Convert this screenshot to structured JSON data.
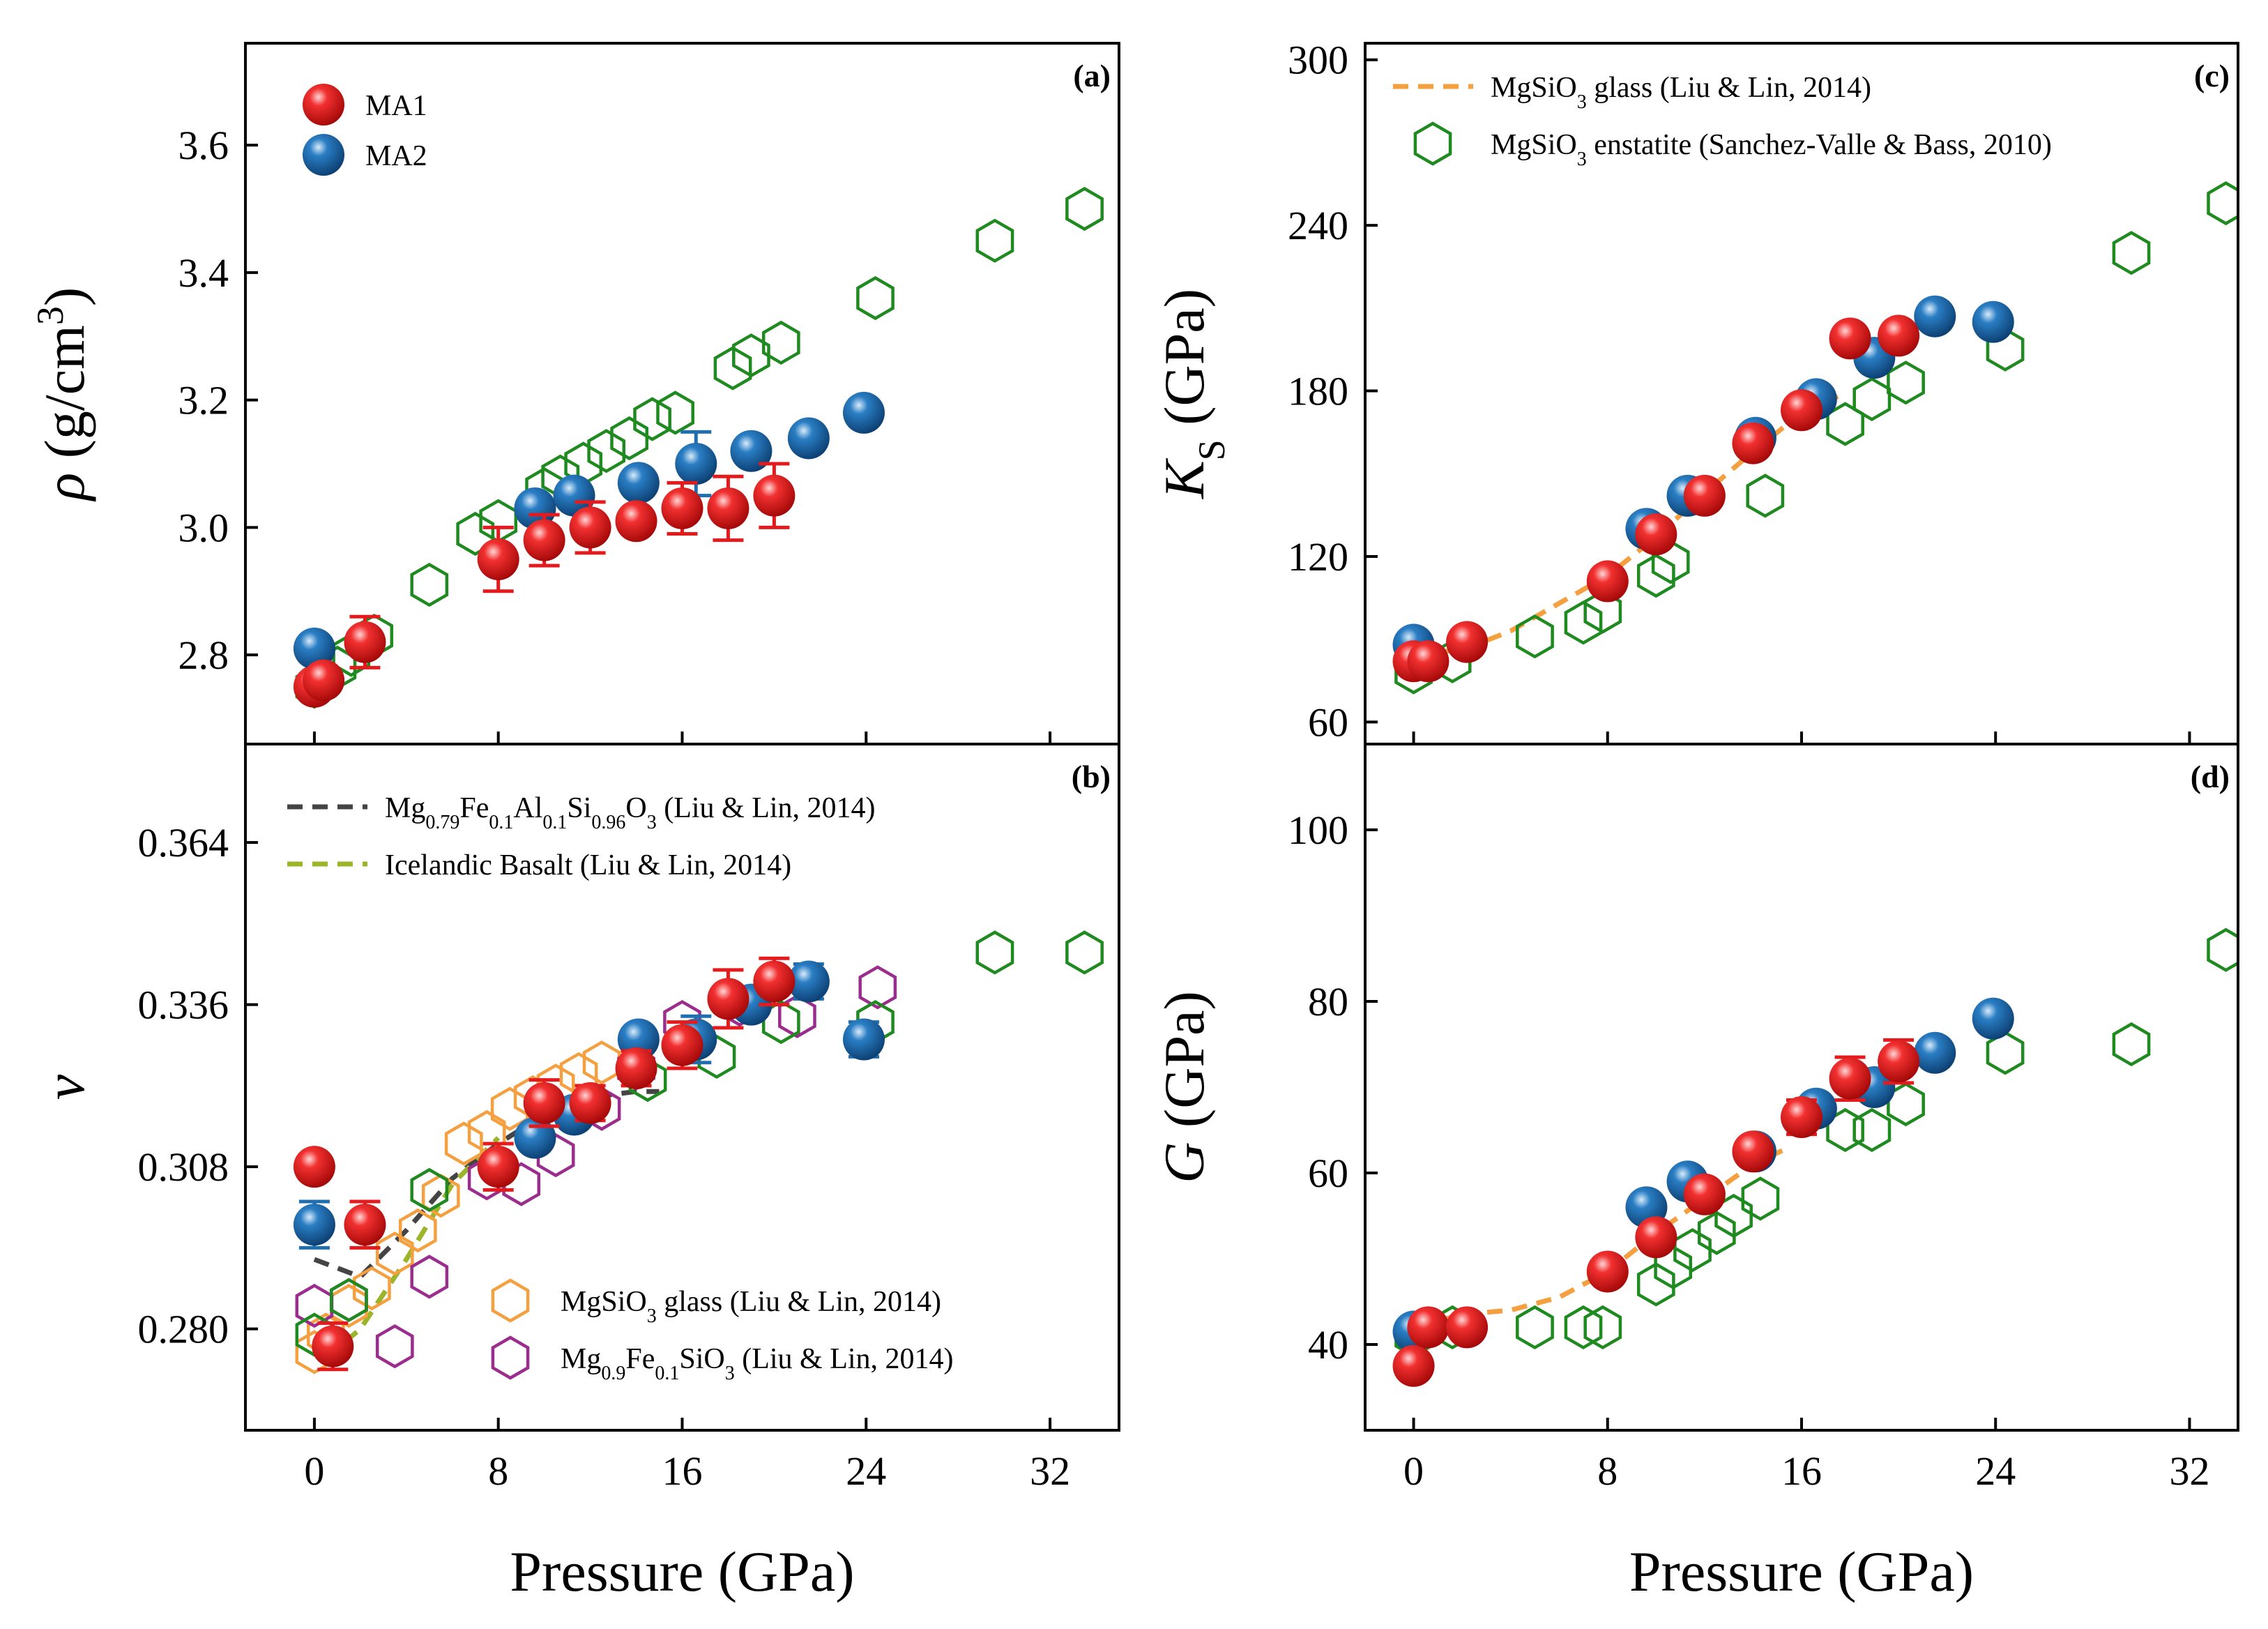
{
  "colors": {
    "ma1": "#e41a1c",
    "ma2": "#1f6fb0",
    "enstatite": "#1f8a1f",
    "glass": "#f4a040",
    "fe_silicate": "#9b2d8e",
    "mgfeal": "#444444",
    "basalt": "#9bb52a"
  },
  "chart_data": [
    {
      "id": "a",
      "tag": "(a)",
      "type": "scatter",
      "xlabel": "",
      "ylabel_symbol": "ρ",
      "ylabel_unit": " (g/cm",
      "ylabel_sup": "3",
      "ylabel_close": ")",
      "xlim": [
        -3,
        35
      ],
      "ylim": [
        2.66,
        3.76
      ],
      "yticks": [
        2.8,
        3.0,
        3.2,
        3.4,
        3.6
      ],
      "ytick_labels": [
        "2.8",
        "3.0",
        "3.2",
        "3.4",
        "3.6"
      ],
      "xticks": [
        0,
        8,
        16,
        24,
        32
      ],
      "series": [
        {
          "name": "MgSiO3 enstatite",
          "style": "hex-enstatite",
          "x": [
            0,
            0.3,
            1.0,
            1.6,
            2.6,
            5.0,
            7.0,
            8.0,
            10.0,
            10.7,
            11.7,
            12.7,
            13.7,
            14.7,
            15.7,
            18.2,
            19.0,
            20.3,
            24.4,
            29.6,
            33.5
          ],
          "y": [
            2.75,
            2.76,
            2.78,
            2.8,
            2.83,
            2.91,
            2.99,
            3.01,
            3.06,
            3.08,
            3.1,
            3.12,
            3.14,
            3.17,
            3.18,
            3.25,
            3.27,
            3.29,
            3.36,
            3.45,
            3.5
          ]
        },
        {
          "name": "MA2",
          "style": "ball-ma2",
          "x": [
            0,
            9.6,
            11.3,
            14.1,
            16.6,
            19.0,
            21.5,
            23.9
          ],
          "y": [
            2.81,
            3.03,
            3.05,
            3.07,
            3.1,
            3.12,
            3.14,
            3.18
          ],
          "err": [
            0.02,
            0.02,
            0.02,
            0.02,
            0.05,
            0.02,
            0.02,
            0.02
          ]
        },
        {
          "name": "MA1",
          "style": "ball-ma1",
          "x": [
            0,
            0.4,
            2.2,
            8.0,
            10.0,
            12.0,
            14.0,
            16.0,
            18.0,
            20.0
          ],
          "y": [
            2.75,
            2.76,
            2.82,
            2.95,
            2.98,
            3.0,
            3.01,
            3.03,
            3.03,
            3.05
          ],
          "err": [
            0.01,
            0.01,
            0.04,
            0.05,
            0.04,
            0.04,
            0.02,
            0.04,
            0.05,
            0.05
          ]
        }
      ],
      "legend": [
        {
          "style": "ball-ma1",
          "label": "MA1"
        },
        {
          "style": "ball-ma2",
          "label": "MA2"
        }
      ]
    },
    {
      "id": "b",
      "tag": "(b)",
      "type": "scatter",
      "xlabel": "Pressure (GPa)",
      "ylabel_symbol": "ν",
      "xlim": [
        -3,
        35
      ],
      "ylim": [
        0.2625,
        0.381
      ],
      "yticks": [
        0.28,
        0.308,
        0.336,
        0.364
      ],
      "ytick_labels": [
        "0.280",
        "0.308",
        "0.336",
        "0.364"
      ],
      "xticks": [
        0,
        8,
        16,
        24,
        32
      ],
      "xtick_labels": [
        "0",
        "8",
        "16",
        "24",
        "32"
      ],
      "series": [
        {
          "name": "Mg0.79Fe0.1Al0.1Si0.96O3",
          "style": "dash-mgfeal",
          "x": [
            0,
            2,
            4,
            6,
            8,
            10,
            12,
            14,
            15
          ],
          "y": [
            0.292,
            0.289,
            0.297,
            0.306,
            0.312,
            0.317,
            0.32,
            0.321,
            0.321
          ]
        },
        {
          "name": "Icelandic Basalt",
          "style": "dash-basalt",
          "x": [
            0.5,
            2,
            4,
            6,
            8
          ],
          "y": [
            0.275,
            0.28,
            0.292,
            0.305,
            0.313
          ]
        },
        {
          "name": "MgSiO3 glass",
          "style": "hex-glass",
          "x": [
            0,
            0.5,
            1.5,
            2.5,
            3.5,
            4.5,
            5.5,
            6.5,
            7.5,
            8.5,
            9.5,
            10.5,
            11.5,
            12.5
          ],
          "y": [
            0.276,
            0.279,
            0.284,
            0.287,
            0.293,
            0.297,
            0.303,
            0.312,
            0.314,
            0.318,
            0.32,
            0.322,
            0.324,
            0.326
          ]
        },
        {
          "name": "Mg0.9Fe0.1SiO3",
          "style": "hex-fesil",
          "x": [
            0,
            1.5,
            3.5,
            5.0,
            7.5,
            9.0,
            10.5,
            12.5,
            14.0,
            16.0,
            18.5,
            21.0,
            24.5
          ],
          "y": [
            0.284,
            0.285,
            0.277,
            0.289,
            0.306,
            0.305,
            0.31,
            0.318,
            0.325,
            0.333,
            0.336,
            0.334,
            0.339
          ]
        },
        {
          "name": "MgSiO3 enstatite",
          "style": "hex-enstatite",
          "x": [
            0,
            1.5,
            5.0,
            14.5,
            17.5,
            20.3,
            24.4,
            29.6,
            33.5
          ],
          "y": [
            0.279,
            0.285,
            0.304,
            0.323,
            0.327,
            0.333,
            0.333,
            0.345,
            0.345
          ]
        },
        {
          "name": "MA2",
          "style": "ball-ma2",
          "x": [
            0,
            9.6,
            11.3,
            14.1,
            16.6,
            19.0,
            21.5,
            23.9
          ],
          "y": [
            0.298,
            0.313,
            0.317,
            0.33,
            0.33,
            0.336,
            0.34,
            0.33
          ],
          "err": [
            0.004,
            0.002,
            0.002,
            0.002,
            0.004,
            0.002,
            0.003,
            0.003
          ]
        },
        {
          "name": "MA1",
          "style": "ball-ma1",
          "x": [
            0,
            0.8,
            2.2,
            8.0,
            10.0,
            12.0,
            14.0,
            16.0,
            18.0,
            20.0
          ],
          "y": [
            0.308,
            0.277,
            0.298,
            0.308,
            0.319,
            0.319,
            0.325,
            0.329,
            0.337,
            0.34
          ],
          "err": [
            0.001,
            0.004,
            0.004,
            0.004,
            0.004,
            0.003,
            0.003,
            0.004,
            0.005,
            0.004
          ]
        }
      ],
      "legend_top": [
        {
          "style": "dash-mgfeal",
          "parts": [
            [
              "Mg",
              ""
            ],
            [
              "0.79",
              "sub"
            ],
            [
              "Fe",
              ""
            ],
            [
              "0.1",
              "sub"
            ],
            [
              "Al",
              ""
            ],
            [
              "0.1",
              "sub"
            ],
            [
              "Si",
              ""
            ],
            [
              "0.96",
              "sub"
            ],
            [
              "O",
              ""
            ],
            [
              "3",
              "sub"
            ],
            [
              " (Liu & Lin, 2014)",
              ""
            ]
          ]
        },
        {
          "style": "dash-basalt",
          "parts": [
            [
              "Icelandic Basalt (Liu & Lin, 2014)",
              ""
            ]
          ]
        }
      ],
      "legend_bottom": [
        {
          "style": "hex-glass",
          "parts": [
            [
              "MgSiO",
              ""
            ],
            [
              "3",
              "sub"
            ],
            [
              " glass (Liu & Lin, 2014)",
              ""
            ]
          ]
        },
        {
          "style": "hex-fesil",
          "parts": [
            [
              "Mg",
              ""
            ],
            [
              "0.9",
              "sub"
            ],
            [
              "Fe",
              ""
            ],
            [
              "0.1",
              "sub"
            ],
            [
              "SiO",
              ""
            ],
            [
              "3",
              "sub"
            ],
            [
              " (Liu & Lin, 2014)",
              ""
            ]
          ]
        }
      ]
    },
    {
      "id": "c",
      "tag": "(c)",
      "type": "scatter",
      "xlabel": "",
      "ylabel_symbol": "K",
      "ylabel_sub": "S",
      "ylabel_unit": " (GPa)",
      "xlim": [
        -2,
        34
      ],
      "ylim": [
        52,
        306
      ],
      "yticks": [
        60,
        120,
        180,
        240,
        300
      ],
      "ytick_labels": [
        "60",
        "120",
        "180",
        "240",
        "300"
      ],
      "xticks": [
        0,
        8,
        16,
        24,
        32
      ],
      "series": [
        {
          "name": "MgSiO3 glass",
          "style": "dash-glass",
          "x": [
            0,
            2,
            4,
            6,
            8,
            10,
            12,
            14,
            16,
            17.5
          ],
          "y": [
            85,
            86,
            93,
            103,
            113,
            127,
            143,
            158,
            172,
            178
          ]
        },
        {
          "name": "MgSiO3 enstatite",
          "style": "hex-enstatite",
          "x": [
            0,
            1.6,
            5.0,
            7.0,
            7.8,
            10.0,
            10.6,
            14.5,
            17.8,
            18.9,
            20.3,
            24.4,
            29.6,
            33.5
          ],
          "y": [
            78,
            82,
            91,
            96,
            100,
            113,
            118,
            142,
            168,
            177,
            183,
            195,
            230,
            248
          ]
        },
        {
          "name": "MA2",
          "style": "ball-ma2",
          "x": [
            0,
            9.6,
            11.3,
            14.1,
            16.6,
            19.0,
            21.5,
            23.9
          ],
          "y": [
            88,
            130,
            142,
            163,
            177,
            192,
            207,
            205
          ]
        },
        {
          "name": "MA1",
          "style": "ball-ma1",
          "x": [
            0,
            0.6,
            2.2,
            8.0,
            10.0,
            12.0,
            14.0,
            16.0,
            18.0,
            20.0
          ],
          "y": [
            82,
            82,
            89,
            111,
            128,
            142,
            161,
            173,
            199,
            200
          ]
        }
      ],
      "legend": [
        {
          "style": "dash-glass",
          "parts": [
            [
              "MgSiO",
              ""
            ],
            [
              "3",
              "sub"
            ],
            [
              " glass (Liu & Lin, 2014)",
              ""
            ]
          ]
        },
        {
          "style": "hex-enstatite",
          "parts": [
            [
              "MgSiO",
              ""
            ],
            [
              "3",
              "sub"
            ],
            [
              " enstatite (Sanchez-Valle & Bass, 2010)",
              ""
            ]
          ]
        }
      ]
    },
    {
      "id": "d",
      "tag": "(d)",
      "type": "scatter",
      "xlabel": "Pressure (GPa)",
      "ylabel_symbol": "G",
      "ylabel_unit": " (GPa)",
      "xlim": [
        -2,
        34
      ],
      "ylim": [
        30,
        110
      ],
      "yticks": [
        40,
        60,
        80,
        100
      ],
      "ytick_labels": [
        "40",
        "60",
        "80",
        "100"
      ],
      "xticks": [
        0,
        8,
        16,
        24,
        32
      ],
      "xtick_labels": [
        "0",
        "8",
        "16",
        "24",
        "32"
      ],
      "series": [
        {
          "name": "MgSiO3 glass",
          "style": "dash-glass",
          "x": [
            0,
            2,
            4,
            6,
            8,
            10,
            12,
            14,
            15.5
          ],
          "y": [
            42,
            43.5,
            44,
            45.5,
            48.5,
            53,
            57,
            61,
            63
          ]
        },
        {
          "name": "MgSiO3 enstatite",
          "style": "hex-enstatite",
          "x": [
            0,
            1.6,
            5.0,
            7.0,
            7.8,
            10.0,
            10.7,
            11.5,
            12.5,
            13.2,
            14.3,
            17.8,
            18.9,
            20.3,
            24.4,
            29.6,
            33.5
          ],
          "y": [
            41,
            42,
            42,
            42,
            42,
            47,
            49,
            51,
            53,
            55,
            57,
            65,
            65,
            68,
            74,
            75,
            86
          ]
        },
        {
          "name": "MA2",
          "style": "ball-ma2",
          "x": [
            0,
            9.6,
            11.3,
            14.1,
            16.6,
            19.0,
            21.5,
            23.9
          ],
          "y": [
            41.5,
            56,
            59,
            62.5,
            67.5,
            70,
            74,
            78
          ],
          "err": [
            0.5,
            0.8,
            0.8,
            0.8,
            1.0,
            1.0,
            1.0,
            1.0
          ]
        },
        {
          "name": "MA1",
          "style": "ball-ma1",
          "x": [
            0,
            0.6,
            2.2,
            8.0,
            10.0,
            12.0,
            14.0,
            16.0,
            18.0,
            20.0
          ],
          "y": [
            37.5,
            42,
            42,
            48.5,
            52.5,
            57.5,
            62.5,
            66.5,
            71,
            73
          ],
          "err": [
            0.5,
            0.5,
            0.5,
            1.0,
            1.5,
            1.5,
            1.5,
            2.0,
            2.5,
            2.5
          ]
        }
      ]
    }
  ]
}
